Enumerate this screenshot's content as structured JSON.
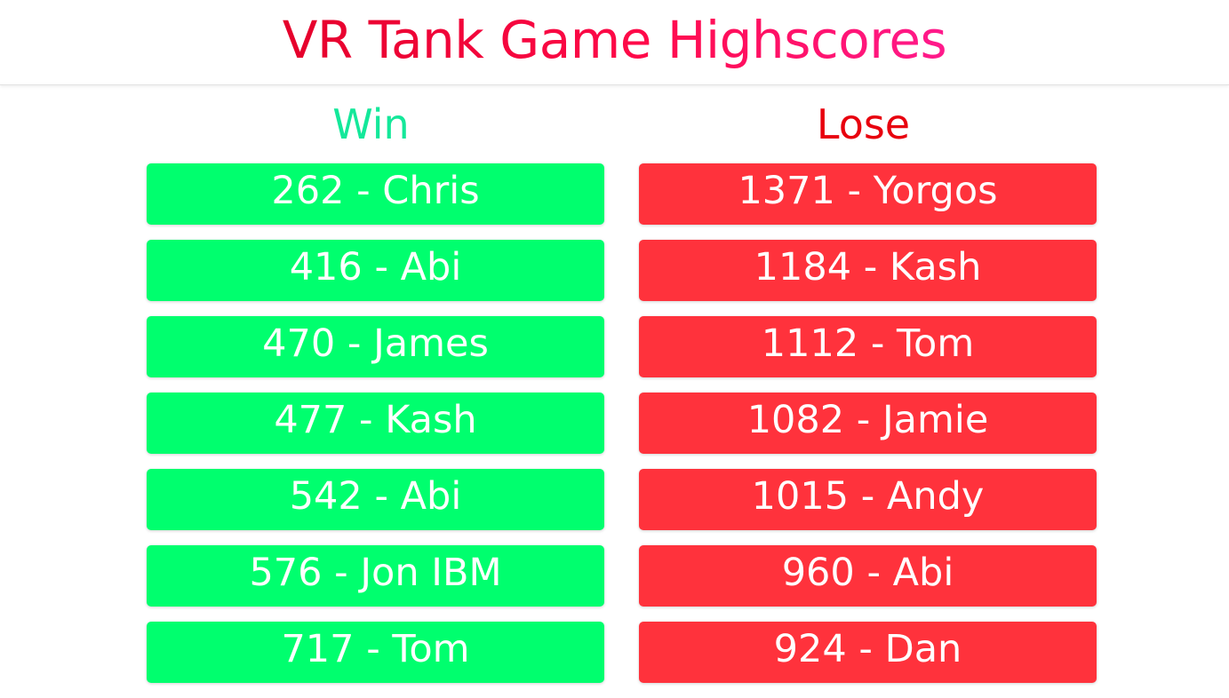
{
  "header": {
    "title": "VR Tank Game Highscores"
  },
  "colors": {
    "title_gradient_start": "#e5002b",
    "title_gradient_end": "#ff1a8c",
    "win_heading": "#14e89a",
    "win_row": "#00ff6e",
    "lose_heading": "#e8000e",
    "lose_row": "#ff323c"
  },
  "win": {
    "heading": "Win",
    "rows": [
      "262 - Chris",
      "416 - Abi",
      "470 - James",
      "477 - Kash",
      "542 - Abi",
      "576 - Jon IBM",
      "717 - Tom"
    ]
  },
  "lose": {
    "heading": "Lose",
    "rows": [
      "1371 - Yorgos",
      "1184 - Kash",
      "1112 - Tom",
      "1082 - Jamie",
      "1015 - Andy",
      "960 - Abi",
      "924 - Dan"
    ]
  }
}
